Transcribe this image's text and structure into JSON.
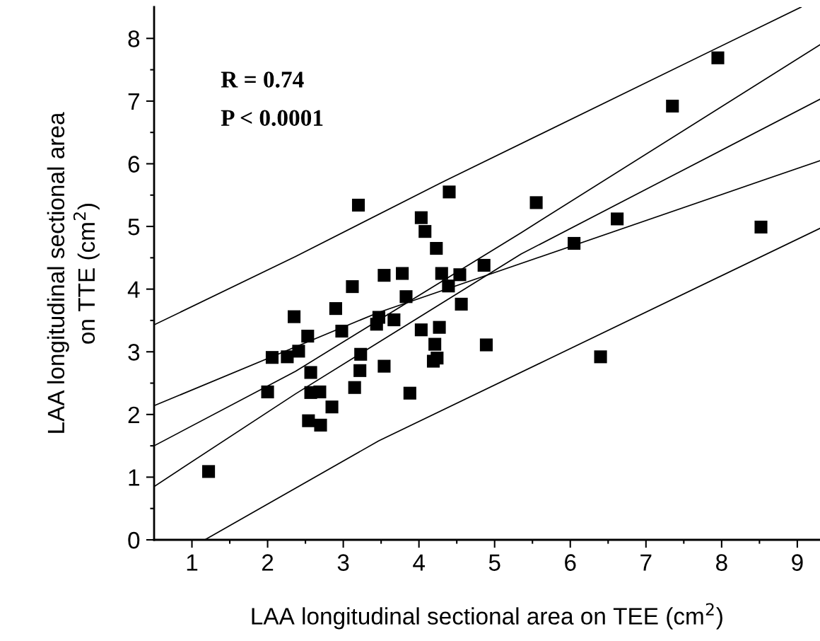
{
  "chart_data": {
    "type": "scatter",
    "xlabel": "LAA longitudinal sectional area on TEE (cm$^{2}$)",
    "ylabel": "LAA longitudinal sectional area\non TTE (cm$^{2}$)",
    "annotations": [
      "R = 0.74",
      "P < 0.0001"
    ],
    "xlim": [
      0.5,
      9.3
    ],
    "ylim": [
      0,
      8.5
    ],
    "xticks": [
      1,
      2,
      3,
      4,
      5,
      6,
      7,
      8,
      9,
      {
        "value": 1.5,
        "label": null
      },
      {
        "value": 2.5,
        "label": null
      },
      {
        "value": 3.5,
        "label": null
      },
      {
        "value": 4.5,
        "label": null
      },
      {
        "value": 5.5,
        "label": null
      },
      {
        "value": 6.5,
        "label": null
      },
      {
        "value": 7.5,
        "label": null
      },
      {
        "value": 8.5,
        "label": null
      }
    ],
    "yticks": [
      0,
      1,
      2,
      3,
      4,
      5,
      6,
      7,
      8,
      {
        "value": 0.5,
        "label": null
      },
      {
        "value": 1.5,
        "label": null
      },
      {
        "value": 2.5,
        "label": null
      },
      {
        "value": 3.5,
        "label": null
      },
      {
        "value": 4.5,
        "label": null
      },
      {
        "value": 5.5,
        "label": null
      },
      {
        "value": 6.5,
        "label": null
      },
      {
        "value": 7.5,
        "label": null
      }
    ],
    "grid": false,
    "legend": false,
    "series": [
      {
        "color": "#000000",
        "marker": "square",
        "x": [
          1.22,
          2.0,
          2.06,
          2.26,
          2.35,
          2.41,
          2.53,
          2.57,
          2.57,
          2.69,
          2.54,
          2.7,
          2.85,
          2.9,
          2.98,
          3.12,
          3.15,
          3.2,
          3.23,
          3.22,
          3.44,
          3.47,
          3.67,
          3.54,
          3.54,
          3.78,
          3.83,
          3.88,
          4.03,
          4.08,
          4.23,
          4.3,
          4.03,
          4.27,
          4.21,
          4.24,
          4.19,
          4.39,
          4.4,
          4.54,
          4.56,
          4.86,
          4.89,
          5.55,
          6.05,
          6.62,
          7.35,
          7.95,
          8.52,
          6.4
        ],
        "values": [
          1.09,
          2.36,
          2.91,
          2.92,
          3.56,
          3.01,
          3.25,
          2.67,
          2.35,
          2.36,
          1.9,
          1.83,
          2.12,
          3.69,
          3.33,
          4.04,
          2.43,
          5.34,
          2.96,
          2.7,
          3.44,
          3.55,
          3.51,
          4.22,
          2.77,
          4.25,
          3.88,
          2.34,
          5.14,
          4.92,
          4.65,
          4.25,
          3.35,
          3.39,
          3.12,
          2.9,
          2.85,
          4.05,
          5.55,
          4.23,
          3.76,
          4.38,
          3.11,
          5.38,
          4.73,
          5.12,
          6.92,
          7.69,
          4.99,
          2.92
        ]
      },
      {
        "type": "line",
        "color": "#000000",
        "marker": "none",
        "line_style": "solid",
        "x": [
          0.5,
          2.37,
          4.28,
          9.05
        ],
        "values": [
          3.43,
          4.52,
          5.69,
          8.5
        ]
      },
      {
        "type": "line",
        "color": "#000000",
        "marker": "none",
        "line_style": "solid",
        "x": [
          0.5,
          3.47,
          9.3
        ],
        "values": [
          2.14,
          3.63,
          6.05
        ]
      },
      {
        "type": "line",
        "color": "#000000",
        "marker": "none",
        "line_style": "solid",
        "x": [
          0.5,
          2.37,
          5.35,
          9.3
        ],
        "values": [
          1.5,
          2.69,
          4.9,
          7.9
        ]
      },
      {
        "type": "line",
        "color": "#000000",
        "marker": "none",
        "line_style": "solid",
        "x": [
          0.5,
          2.37,
          5.35,
          9.3
        ],
        "values": [
          0.85,
          2.33,
          4.56,
          7.03
        ]
      },
      {
        "type": "line",
        "color": "#000000",
        "marker": "none",
        "line_style": "solid",
        "x": [
          1.17,
          3.47,
          9.3
        ],
        "values": [
          0,
          1.58,
          4.97
        ]
      }
    ]
  }
}
